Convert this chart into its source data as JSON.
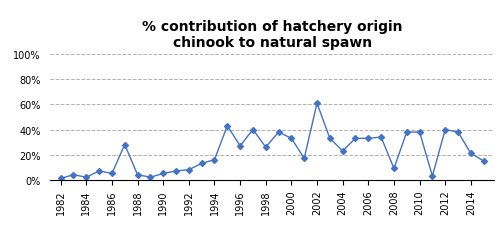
{
  "title": "% contribution of hatchery origin\nchinook to natural spawn",
  "years": [
    1982,
    1983,
    1984,
    1985,
    1986,
    1987,
    1988,
    1989,
    1990,
    1991,
    1992,
    1993,
    1994,
    1995,
    1996,
    1997,
    1998,
    1999,
    2000,
    2001,
    2002,
    2003,
    2004,
    2005,
    2006,
    2007,
    2008,
    2009,
    2010,
    2011,
    2012,
    2013,
    2014,
    2015
  ],
  "values": [
    0.01,
    0.04,
    0.02,
    0.07,
    0.05,
    0.28,
    0.04,
    0.02,
    0.05,
    0.07,
    0.08,
    0.13,
    0.16,
    0.43,
    0.27,
    0.4,
    0.26,
    0.38,
    0.33,
    0.17,
    0.61,
    0.33,
    0.23,
    0.33,
    0.33,
    0.34,
    0.09,
    0.38,
    0.38,
    0.03,
    0.4,
    0.38,
    0.21,
    0.15
  ],
  "line_color": "#4472C4",
  "marker": "D",
  "marker_size": 3,
  "ylim": [
    0,
    1.0
  ],
  "yticks": [
    0,
    0.2,
    0.4,
    0.6,
    0.8,
    1.0
  ],
  "ytick_labels": [
    "0%",
    "20%",
    "40%",
    "60%",
    "80%",
    "100%"
  ],
  "background_color": "#ffffff",
  "grid_color": "#b0b0b0",
  "title_fontsize": 10,
  "tick_fontsize": 7,
  "xlim": [
    1981.2,
    2015.8
  ]
}
